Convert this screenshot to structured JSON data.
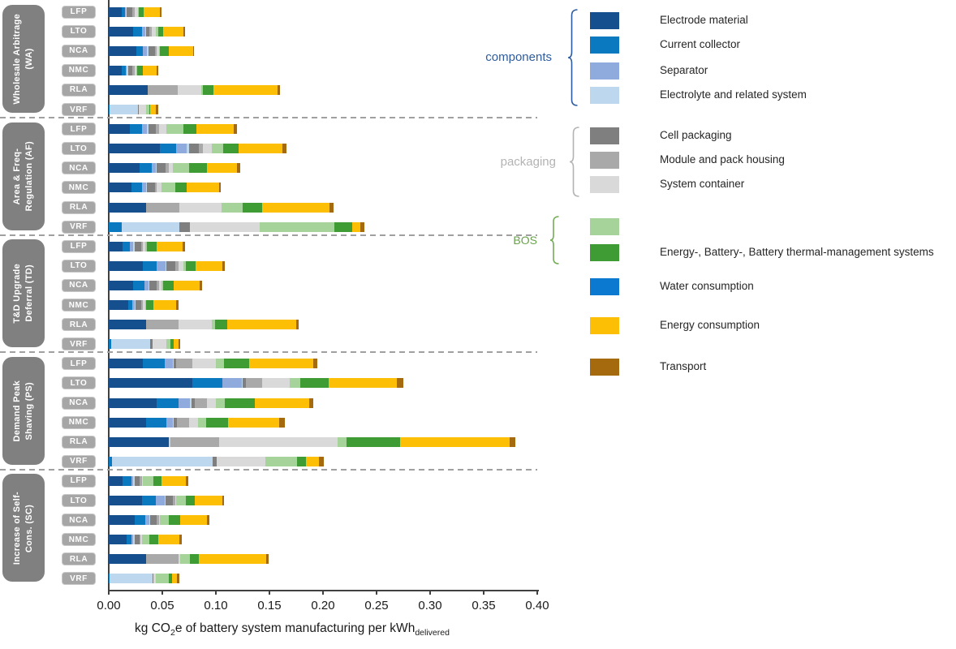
{
  "chart_data": {
    "type": "bar",
    "orientation": "horizontal",
    "stacked": true,
    "xlabel": "kg CO2e of battery system manufacturing per kWhdelivered",
    "xlabel_parts": {
      "t1": "kg CO",
      "t1sub": "2",
      "t2": "e of battery system manufacturing per kWh",
      "t2sub": "delivered"
    },
    "xlim": [
      0.0,
      0.4
    ],
    "xtick_labels": [
      "0.00",
      "0.05",
      "0.10",
      "0.15",
      "0.20",
      "0.25",
      "0.30",
      "0.35",
      "0.40"
    ],
    "grid": false,
    "legend_position": "right",
    "colors": {
      "group_box": "#808080",
      "battery_badge": "#A6A6A6",
      "axis": "#404040",
      "dashed_separator": "#A0A0A0"
    },
    "annotations": {
      "components": {
        "label": "components",
        "color": "#2E5C9E"
      },
      "packaging": {
        "label": "packaging",
        "color": "#B3B3B3"
      },
      "bos": {
        "label": "BOS",
        "color": "#69A24B"
      }
    },
    "segments": [
      {
        "key": "em",
        "label": "Electrode material",
        "color": "#164F8E"
      },
      {
        "key": "cc",
        "label": "Current collector",
        "color": "#0A79C0"
      },
      {
        "key": "sep",
        "label": "Separator",
        "color": "#8FAADC"
      },
      {
        "key": "ely",
        "label": "Electrolyte and related system",
        "color": "#BDD7EE"
      },
      {
        "key": "cp",
        "label": "Cell packaging",
        "color": "#7F7F7F"
      },
      {
        "key": "mh",
        "label": "Module and pack housing",
        "color": "#A9A9A9"
      },
      {
        "key": "sc",
        "label": "System container",
        "color": "#D9D9D9"
      },
      {
        "key": "bosl",
        "label": "",
        "color": "#A5D39A"
      },
      {
        "key": "bosd",
        "label": "Energy-, Battery-, Battery thermal-management systems",
        "color": "#3F9C35"
      },
      {
        "key": "wat",
        "label": "Water consumption",
        "color": "#0B79D0"
      },
      {
        "key": "en",
        "label": "Energy consumption",
        "color": "#FCBF05"
      },
      {
        "key": "tr",
        "label": "Transport",
        "color": "#A66A0E"
      }
    ],
    "groups": [
      {
        "label_lines": [
          "Wholesale Arbitrage",
          "(WA)"
        ],
        "rows": [
          {
            "battery": "LFP",
            "values": [
              0.012,
              0.003,
              0.001,
              0.001,
              0.005,
              0.002,
              0.003,
              0.001,
              0.005,
              0,
              0.015,
              0.001
            ]
          },
          {
            "battery": "LTO",
            "values": [
              0.023,
              0.008,
              0.003,
              0.001,
              0.003,
              0.002,
              0.004,
              0.002,
              0.005,
              0,
              0.019,
              0.001
            ]
          },
          {
            "battery": "NCA",
            "values": [
              0.026,
              0.006,
              0.004,
              0.001,
              0.006,
              0.002,
              0.002,
              0.001,
              0.008,
              0,
              0.023,
              0.001
            ]
          },
          {
            "battery": "NMC",
            "values": [
              0.012,
              0.004,
              0.001,
              0.001,
              0.004,
              0.002,
              0.002,
              0.001,
              0.005,
              0,
              0.013,
              0.001
            ]
          },
          {
            "battery": "RLA",
            "values": [
              0.036,
              0,
              0,
              0,
              0,
              0.028,
              0.022,
              0.002,
              0.01,
              0,
              0.06,
              0.002
            ]
          },
          {
            "battery": "VRF",
            "values": [
              0,
              0.001,
              0,
              0.026,
              0.001,
              0,
              0.007,
              0.003,
              0.001,
              0,
              0.005,
              0.002
            ]
          }
        ]
      },
      {
        "label_lines": [
          "Area & Freq-",
          "Regulation (AF)"
        ],
        "rows": [
          {
            "battery": "LFP",
            "values": [
              0.02,
              0.011,
              0.005,
              0.001,
              0.007,
              0.003,
              0.007,
              0.016,
              0.012,
              0,
              0.035,
              0.003
            ]
          },
          {
            "battery": "LTO",
            "values": [
              0.048,
              0.015,
              0.01,
              0.002,
              0.009,
              0.004,
              0.008,
              0.011,
              0.014,
              0,
              0.041,
              0.004
            ]
          },
          {
            "battery": "NCA",
            "values": [
              0.029,
              0.011,
              0.004,
              0.001,
              0.008,
              0.003,
              0.004,
              0.015,
              0.017,
              0,
              0.028,
              0.003
            ]
          },
          {
            "battery": "NMC",
            "values": [
              0.021,
              0.01,
              0.004,
              0.001,
              0.007,
              0.002,
              0.004,
              0.013,
              0.011,
              0,
              0.03,
              0.002
            ]
          },
          {
            "battery": "RLA",
            "values": [
              0.035,
              0,
              0,
              0,
              0,
              0.031,
              0.039,
              0.02,
              0.018,
              0,
              0.063,
              0.004
            ]
          },
          {
            "battery": "VRF",
            "values": [
              0,
              0.012,
              0,
              0.054,
              0.01,
              0,
              0.065,
              0.07,
              0.016,
              0,
              0.008,
              0.004
            ]
          }
        ]
      },
      {
        "label_lines": [
          "T&D Upgrade",
          "Deferral (TD)"
        ],
        "rows": [
          {
            "battery": "LFP",
            "values": [
              0.013,
              0.007,
              0.003,
              0.001,
              0.006,
              0.002,
              0.002,
              0.002,
              0.009,
              0,
              0.024,
              0.002
            ]
          },
          {
            "battery": "LTO",
            "values": [
              0.032,
              0.013,
              0.008,
              0.001,
              0.008,
              0.003,
              0.005,
              0.002,
              0.009,
              0,
              0.025,
              0.002
            ]
          },
          {
            "battery": "NCA",
            "values": [
              0.023,
              0.01,
              0.004,
              0.001,
              0.007,
              0.002,
              0.002,
              0.002,
              0.01,
              0,
              0.024,
              0.002
            ]
          },
          {
            "battery": "NMC",
            "values": [
              0.018,
              0.004,
              0.002,
              0.001,
              0.005,
              0.002,
              0.002,
              0.001,
              0.007,
              0,
              0.021,
              0.002
            ]
          },
          {
            "battery": "RLA",
            "values": [
              0.035,
              0,
              0,
              0,
              0,
              0.03,
              0.031,
              0.003,
              0.012,
              0,
              0.064,
              0.002
            ]
          },
          {
            "battery": "VRF",
            "values": [
              0,
              0.002,
              0,
              0.037,
              0.002,
              0,
              0.013,
              0.004,
              0.003,
              0,
              0.004,
              0.002
            ]
          }
        ]
      },
      {
        "label_lines": [
          "Demand Peak",
          "Shaving (PS)"
        ],
        "rows": [
          {
            "battery": "LFP",
            "values": [
              0.032,
              0.02,
              0.008,
              0.001,
              0.002,
              0.015,
              0.022,
              0.008,
              0.023,
              0,
              0.06,
              0.004
            ]
          },
          {
            "battery": "LTO",
            "values": [
              0.078,
              0.028,
              0.018,
              0.001,
              0.003,
              0.015,
              0.026,
              0.01,
              0.026,
              0,
              0.064,
              0.006
            ]
          },
          {
            "battery": "NCA",
            "values": [
              0.045,
              0.02,
              0.011,
              0.001,
              0.003,
              0.012,
              0.008,
              0.008,
              0.028,
              0,
              0.051,
              0.004
            ]
          },
          {
            "battery": "NMC",
            "values": [
              0.035,
              0.019,
              0.006,
              0.001,
              0.003,
              0.011,
              0.008,
              0.008,
              0.02,
              0,
              0.048,
              0.005
            ]
          },
          {
            "battery": "RLA",
            "values": [
              0.056,
              0,
              0,
              0.002,
              0,
              0.045,
              0.111,
              0.008,
              0.05,
              0,
              0.102,
              0.006
            ]
          },
          {
            "battery": "VRF",
            "values": [
              0,
              0.003,
              0,
              0.094,
              0.004,
              0,
              0.045,
              0.03,
              0.008,
              0,
              0.012,
              0.005
            ]
          }
        ]
      },
      {
        "label_lines": [
          "Increase of Self-",
          "Cons. (SC)"
        ],
        "rows": [
          {
            "battery": "LFP",
            "values": [
              0.013,
              0.008,
              0.002,
              0.001,
              0.005,
              0.002,
              0.001,
              0.01,
              0.007,
              0,
              0.023,
              0.002
            ]
          },
          {
            "battery": "LTO",
            "values": [
              0.031,
              0.013,
              0.008,
              0.001,
              0.007,
              0.002,
              0.001,
              0.009,
              0.008,
              0,
              0.026,
              0.002
            ]
          },
          {
            "battery": "NCA",
            "values": [
              0.024,
              0.01,
              0.004,
              0.001,
              0.006,
              0.002,
              0.001,
              0.008,
              0.011,
              0,
              0.025,
              0.002
            ]
          },
          {
            "battery": "NMC",
            "values": [
              0.017,
              0.004,
              0.002,
              0.001,
              0.005,
              0.001,
              0.001,
              0.007,
              0.008,
              0,
              0.02,
              0.002
            ]
          },
          {
            "battery": "RLA",
            "values": [
              0.035,
              0,
              0,
              0,
              0,
              0.03,
              0.002,
              0.009,
              0.008,
              0,
              0.063,
              0.002
            ]
          },
          {
            "battery": "VRF",
            "values": [
              0,
              0.001,
              0,
              0.04,
              0.001,
              0,
              0.002,
              0.012,
              0.003,
              0,
              0.005,
              0.002
            ]
          }
        ]
      }
    ]
  }
}
